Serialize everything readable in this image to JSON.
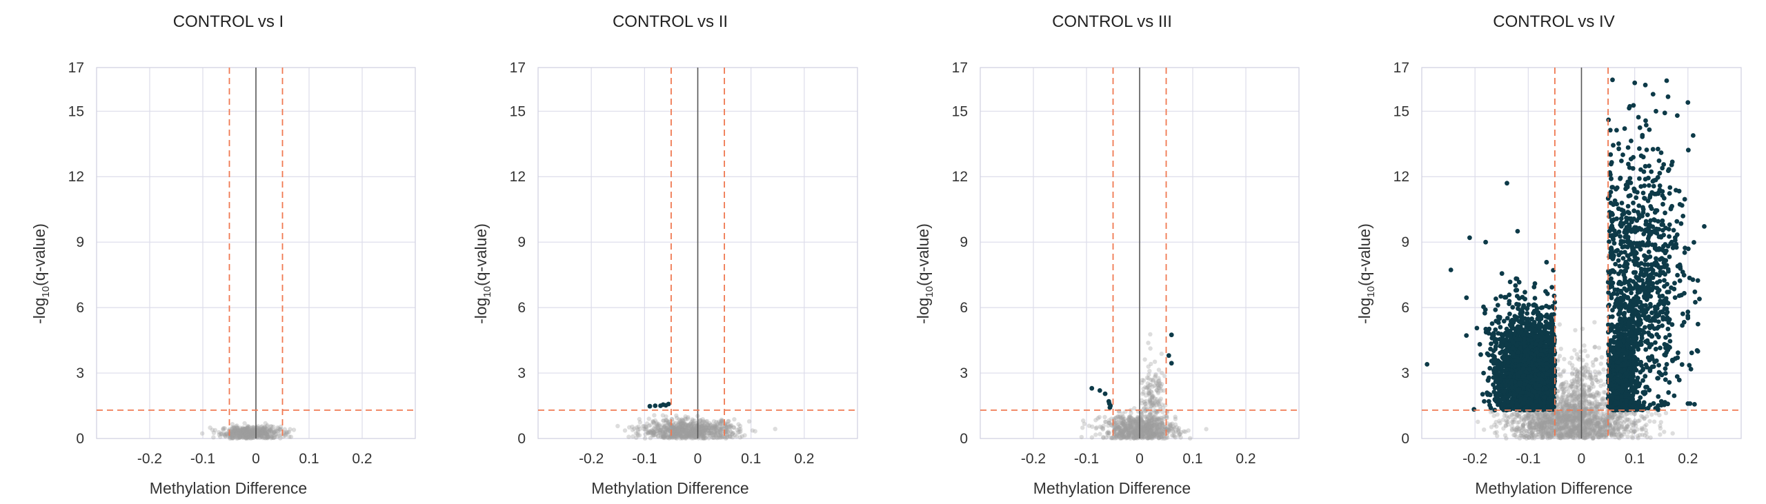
{
  "chart_data": [
    {
      "type": "scatter",
      "title": "CONTROL vs I",
      "xlabel": "Methylation Difference",
      "ylabel_main": "-log",
      "ylabel_sub": "10",
      "ylabel_tail": "(q-value)",
      "xlim": [
        -0.3,
        0.3
      ],
      "ylim": [
        0,
        17
      ],
      "x_ticks": [
        -0.2,
        -0.1,
        0,
        0.1,
        0.2
      ],
      "x_tick_labels": [
        "-0.2",
        "-0.1",
        "0",
        "0.1",
        "0.2"
      ],
      "y_ticks": [
        0,
        3,
        6,
        9,
        12,
        15,
        17
      ],
      "y_tick_labels": [
        "0",
        "3",
        "6",
        "9",
        "12",
        "15",
        "17"
      ],
      "thresholds": {
        "x": [
          -0.05,
          0.05
        ],
        "y": 1.3
      },
      "grid": true,
      "series": [
        {
          "role": "non-significant",
          "color": "#9e9e9e",
          "cloud": [
            {
              "cx": -0.01,
              "cy": 0.25,
              "sx": 0.028,
              "sy": 0.15,
              "n": 500
            }
          ],
          "points": []
        },
        {
          "role": "significant",
          "color": "#0d3a48",
          "cloud": [],
          "points": []
        }
      ]
    },
    {
      "type": "scatter",
      "title": "CONTROL vs II",
      "xlabel": "Methylation Difference",
      "ylabel_main": "-log",
      "ylabel_sub": "10",
      "ylabel_tail": "(q-value)",
      "xlim": [
        -0.3,
        0.3
      ],
      "ylim": [
        0,
        17
      ],
      "x_ticks": [
        -0.2,
        -0.1,
        0,
        0.1,
        0.2
      ],
      "x_tick_labels": [
        "-0.2",
        "-0.1",
        "0",
        "0.1",
        "0.2"
      ],
      "y_ticks": [
        0,
        3,
        6,
        9,
        12,
        15,
        17
      ],
      "y_tick_labels": [
        "0",
        "3",
        "6",
        "9",
        "12",
        "15",
        "17"
      ],
      "thresholds": {
        "x": [
          -0.05,
          0.05
        ],
        "y": 1.3
      },
      "grid": true,
      "series": [
        {
          "role": "non-significant",
          "color": "#9e9e9e",
          "cloud": [
            {
              "cx": -0.015,
              "cy": 0.35,
              "sx": 0.045,
              "sy": 0.25,
              "n": 750
            }
          ],
          "points": []
        },
        {
          "role": "significant",
          "color": "#0d3a48",
          "cloud": [],
          "points": [
            [
              -0.09,
              1.48
            ],
            [
              -0.08,
              1.5
            ],
            [
              -0.07,
              1.5
            ],
            [
              -0.065,
              1.55
            ],
            [
              -0.06,
              1.52
            ],
            [
              -0.055,
              1.58
            ]
          ]
        }
      ]
    },
    {
      "type": "scatter",
      "title": "CONTROL vs III",
      "xlabel": "Methylation Difference",
      "ylabel_main": "-log",
      "ylabel_sub": "10",
      "ylabel_tail": "(q-value)",
      "xlim": [
        -0.3,
        0.3
      ],
      "ylim": [
        0,
        17
      ],
      "x_ticks": [
        -0.2,
        -0.1,
        0,
        0.1,
        0.2
      ],
      "x_tick_labels": [
        "-0.2",
        "-0.1",
        "0",
        "0.1",
        "0.2"
      ],
      "y_ticks": [
        0,
        3,
        6,
        9,
        12,
        15,
        17
      ],
      "y_tick_labels": [
        "0",
        "3",
        "6",
        "9",
        "12",
        "15",
        "17"
      ],
      "thresholds": {
        "x": [
          -0.05,
          0.05
        ],
        "y": 1.3
      },
      "grid": true,
      "series": [
        {
          "role": "non-significant",
          "color": "#9e9e9e",
          "cloud": [
            {
              "cx": 0.0,
              "cy": 0.4,
              "sx": 0.035,
              "sy": 0.35,
              "n": 700
            },
            {
              "cx": 0.025,
              "cy": 1.8,
              "sx": 0.012,
              "sy": 0.9,
              "n": 160
            }
          ],
          "points": []
        },
        {
          "role": "significant",
          "color": "#0d3a48",
          "cloud": [],
          "points": [
            [
              -0.09,
              2.3
            ],
            [
              -0.075,
              2.2
            ],
            [
              -0.065,
              2.05
            ],
            [
              -0.058,
              1.7
            ],
            [
              -0.057,
              1.6
            ],
            [
              -0.055,
              1.5
            ],
            [
              -0.056,
              1.42
            ],
            [
              0.06,
              4.75
            ],
            [
              0.055,
              3.8
            ],
            [
              0.06,
              3.45
            ]
          ]
        }
      ]
    },
    {
      "type": "scatter",
      "title": "CONTROL vs IV",
      "xlabel": "Methylation Difference",
      "ylabel_main": "-log",
      "ylabel_sub": "10",
      "ylabel_tail": "(q-value)",
      "xlim": [
        -0.3,
        0.3
      ],
      "ylim": [
        0,
        17
      ],
      "x_ticks": [
        -0.2,
        -0.1,
        0,
        0.1,
        0.2
      ],
      "x_tick_labels": [
        "-0.2",
        "-0.1",
        "0",
        "0.1",
        "0.2"
      ],
      "y_ticks": [
        0,
        3,
        6,
        9,
        12,
        15,
        17
      ],
      "y_tick_labels": [
        "0",
        "3",
        "6",
        "9",
        "12",
        "15",
        "17"
      ],
      "thresholds": {
        "x": [
          -0.05,
          0.05
        ],
        "y": 1.3
      },
      "grid": true,
      "series": [
        {
          "role": "non-significant",
          "color": "#9e9e9e",
          "cloud": [
            {
              "cx": -0.02,
              "cy": 0.8,
              "sx": 0.06,
              "sy": 0.6,
              "n": 1300
            },
            {
              "cx": 0.0,
              "cy": 2.2,
              "sx": 0.025,
              "sy": 1.1,
              "n": 300
            }
          ],
          "points": []
        },
        {
          "role": "significant",
          "color": "#0d3a48",
          "cloud": [
            {
              "cx": -0.1,
              "cy": 3.0,
              "sx": 0.03,
              "sy": 1.1,
              "n": 2200
            },
            {
              "cx": -0.11,
              "cy": 5.2,
              "sx": 0.04,
              "sy": 1.2,
              "n": 160
            },
            {
              "cx": 0.075,
              "cy": 3.0,
              "sx": 0.015,
              "sy": 1.3,
              "n": 600
            },
            {
              "cx": 0.11,
              "cy": 7.5,
              "sx": 0.04,
              "sy": 3.0,
              "n": 900
            }
          ],
          "points": [
            [
              -0.29,
              3.4
            ],
            [
              -0.21,
              9.2
            ],
            [
              -0.14,
              11.7
            ],
            [
              -0.18,
              9.0
            ],
            [
              -0.12,
              9.5
            ],
            [
              0.1,
              16.3
            ],
            [
              0.12,
              16.2
            ],
            [
              0.16,
              16.4
            ],
            [
              0.2,
              15.4
            ],
            [
              0.14,
              15.0
            ],
            [
              0.18,
              14.8
            ],
            [
              0.15,
              1.7
            ],
            [
              0.2,
              1.6
            ],
            [
              0.2,
              5.8
            ]
          ]
        }
      ]
    }
  ]
}
